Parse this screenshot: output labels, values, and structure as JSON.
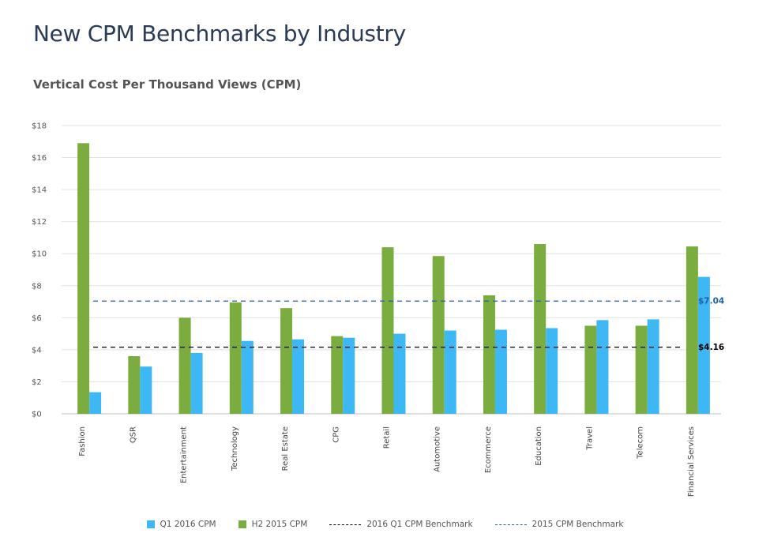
{
  "page": {
    "title": "New CPM Benchmarks by Industry",
    "subtitle": "Vertical Cost Per Thousand Views (CPM)"
  },
  "colors": {
    "q1": "#3db8f5",
    "h2": "#7aac3f",
    "benchmark_2016": "#000000",
    "benchmark_2015": "#1f5fa8",
    "grid": "#e2e2e2"
  },
  "chart_data": {
    "type": "bar",
    "categories": [
      "Fashion",
      "QSR",
      "Entertainment",
      "Technology",
      "Real Estate",
      "CPG",
      "Retail",
      "Automotive",
      "Ecommerce",
      "Education",
      "Travel",
      "Telecom",
      "Financial Services"
    ],
    "series": [
      {
        "name": "H2 2015 CPM",
        "key": "h2",
        "values": [
          16.9,
          3.6,
          6.0,
          6.95,
          6.6,
          4.85,
          10.4,
          9.85,
          7.4,
          10.6,
          5.5,
          5.5,
          10.45
        ]
      },
      {
        "name": "Q1 2016 CPM",
        "key": "q1",
        "values": [
          1.35,
          2.95,
          3.8,
          4.55,
          4.65,
          4.75,
          5.0,
          5.2,
          5.25,
          5.35,
          5.85,
          5.9,
          8.55
        ]
      }
    ],
    "reference_lines": [
      {
        "name": "2016  Q1 CPM Benchmark",
        "value": 4.16,
        "label": "$4.16",
        "style": "dashed",
        "colorKey": "benchmark_2016"
      },
      {
        "name": "2015 CPM Benchmark",
        "value": 7.04,
        "label": "$7.04",
        "style": "dashed",
        "colorKey": "benchmark_2015"
      }
    ],
    "ylim": [
      0,
      18
    ],
    "y_ticks": [
      0,
      2,
      4,
      6,
      8,
      10,
      12,
      14,
      16,
      18
    ],
    "y_tick_labels": [
      "$0",
      "$2",
      "$4",
      "$6",
      "$8",
      "$10",
      "$12",
      "$14",
      "$16",
      "$18"
    ],
    "grid": true,
    "legend_position": "bottom",
    "legend_order": [
      "Q1 2016 CPM",
      "H2 2015 CPM",
      "2016  Q1 CPM Benchmark",
      "2015 CPM Benchmark"
    ]
  }
}
